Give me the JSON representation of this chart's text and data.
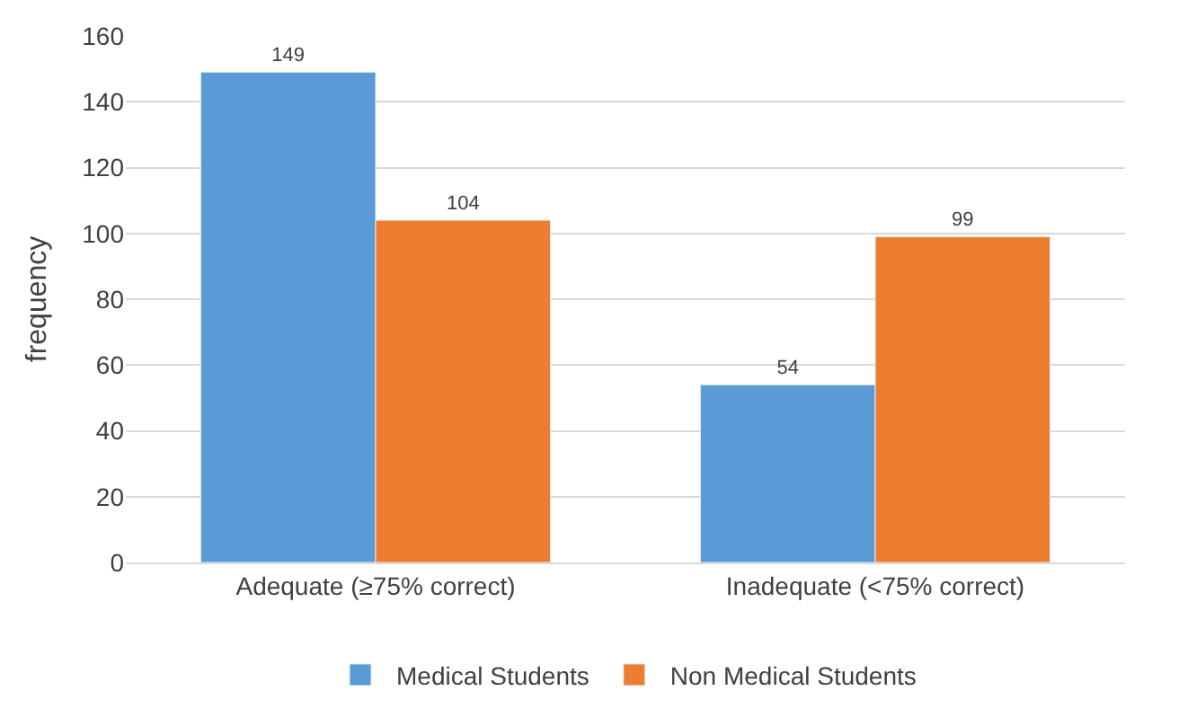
{
  "chart_data": {
    "type": "bar",
    "ylabel": "frequency",
    "categories": [
      "Adequate (≥75% correct)",
      "Inadequate (<75% correct)"
    ],
    "series": [
      {
        "name": "Medical Students",
        "color": "#5b9bd5",
        "values": [
          149,
          54
        ]
      },
      {
        "name": "Non Medical Students",
        "color": "#ed7d31",
        "values": [
          104,
          99
        ]
      }
    ],
    "ylim": [
      0,
      160
    ],
    "yticks": [
      0,
      20,
      40,
      60,
      80,
      100,
      120,
      140,
      160
    ],
    "grid": "y",
    "legend": "bottom",
    "data_labels": true
  }
}
